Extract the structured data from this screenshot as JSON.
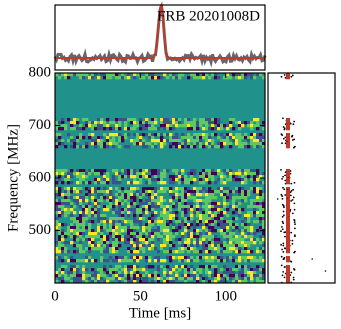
{
  "chart_data": {
    "type": "heatmap",
    "title": "FRB 20201008D",
    "x_label": "Time [ms]",
    "y_label": "Frequency [MHz]",
    "xlim": [
      0,
      123
    ],
    "xticks": [
      0,
      50,
      100
    ],
    "ylim": [
      400,
      800
    ],
    "yticks": [
      500,
      600,
      700,
      800
    ]
  }
}
